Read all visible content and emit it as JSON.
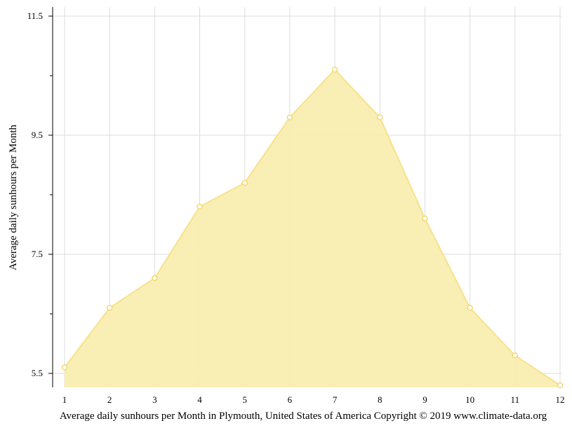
{
  "chart_data": {
    "type": "area",
    "title": "",
    "ylabel": "Average daily sunhours per Month",
    "caption": "Average daily sunhours per Month in Plymouth, United States of America Copyright © 2019 www.climate-data.org",
    "x": [
      1,
      2,
      3,
      4,
      5,
      6,
      7,
      8,
      9,
      10,
      11,
      12
    ],
    "x_tick_labels": [
      "1",
      "2",
      "3",
      "4",
      "5",
      "6",
      "7",
      "8",
      "9",
      "10",
      "11",
      "12"
    ],
    "values": [
      5.6,
      6.6,
      7.1,
      8.3,
      8.7,
      9.8,
      10.6,
      9.8,
      8.1,
      6.6,
      5.8,
      5.3
    ],
    "ylim": [
      5.3,
      11.65
    ],
    "y_ticks": [
      5.5,
      7.5,
      9.5,
      11.5
    ],
    "y_tick_labels": [
      "5.5",
      "7.5",
      "9.5",
      "11.5"
    ],
    "y_minor_ticks": [
      6.5,
      8.5,
      10.5
    ],
    "grid": true,
    "colors": {
      "fill": "#f9eeb0",
      "line": "#f7e28c",
      "marker_stroke": "#f2d35a",
      "grid": "#dddddd",
      "axis": "#000000"
    }
  }
}
